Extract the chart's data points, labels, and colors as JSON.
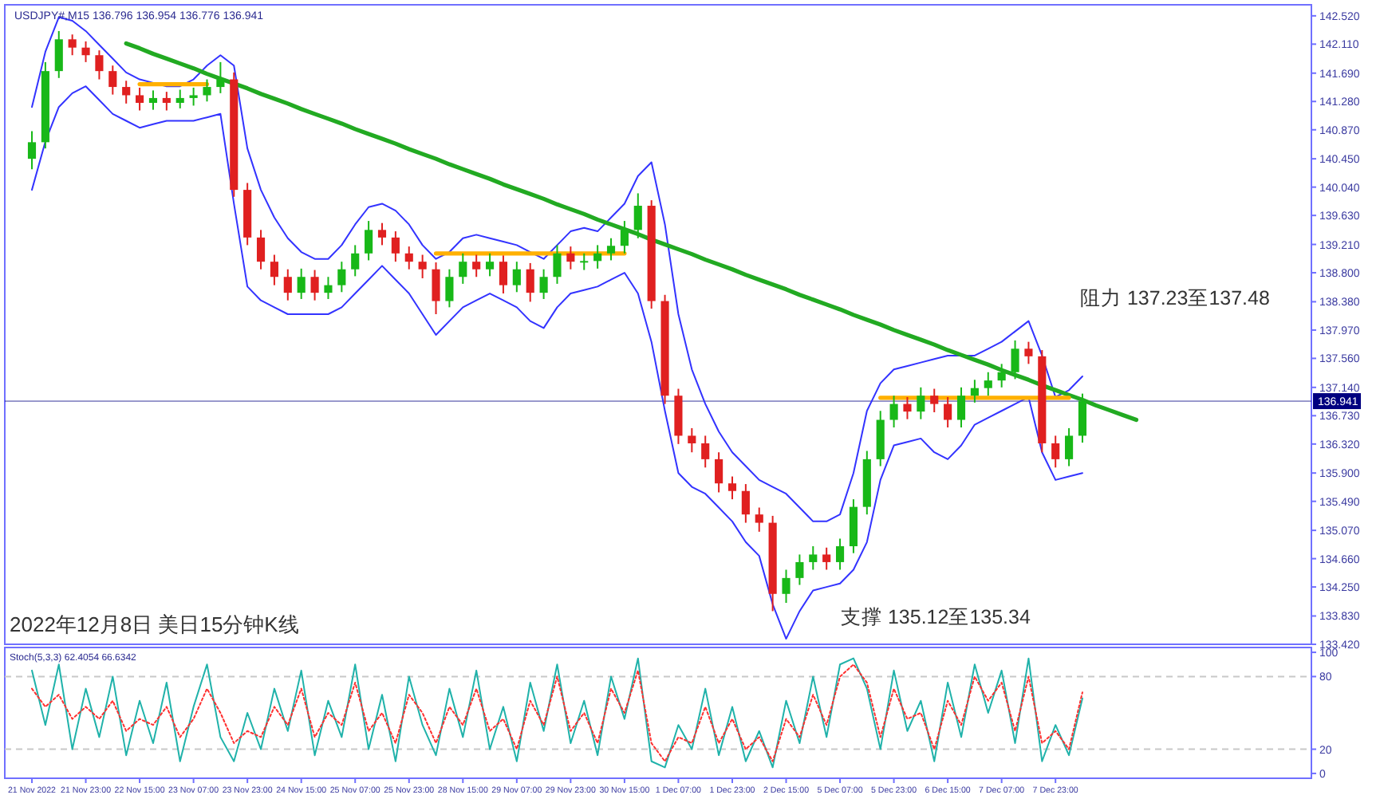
{
  "chart_data": [
    {
      "type": "candlestick",
      "subtitle": "USDJPY#,M15 136.796 136.954 136.776 136.941",
      "title": "2022年12月8日 美日15分钟K线",
      "categories": [
        null,
        null,
        null,
        null,
        null,
        null,
        null,
        null,
        null,
        null,
        null,
        null,
        null,
        null,
        null,
        null,
        null,
        null,
        null,
        null,
        null,
        null,
        null,
        null,
        null,
        null,
        null,
        null,
        null,
        null,
        null,
        null,
        null,
        null,
        null,
        null,
        null,
        null,
        null,
        null,
        null,
        null,
        null,
        null,
        null,
        null,
        null,
        null,
        null,
        null,
        null,
        null,
        null,
        null,
        null,
        null,
        null,
        null,
        null,
        null,
        null,
        null,
        null,
        null,
        null,
        null,
        null,
        null,
        null,
        null,
        null,
        null,
        null,
        null,
        null,
        null,
        null,
        null,
        null,
        null,
        null,
        null,
        null
      ],
      "ohlc": [
        [
          140.45,
          140.85,
          140.3,
          140.69
        ],
        [
          140.69,
          141.85,
          140.6,
          141.72
        ],
        [
          141.72,
          142.3,
          141.62,
          142.18
        ],
        [
          142.18,
          142.25,
          141.95,
          142.06
        ],
        [
          142.06,
          142.15,
          141.85,
          141.95
        ],
        [
          141.95,
          142.02,
          141.6,
          141.72
        ],
        [
          141.72,
          141.8,
          141.38,
          141.49
        ],
        [
          141.49,
          141.58,
          141.25,
          141.37
        ],
        [
          141.37,
          141.48,
          141.15,
          141.26
        ],
        [
          141.26,
          141.44,
          141.16,
          141.33
        ],
        [
          141.33,
          141.42,
          141.15,
          141.26
        ],
        [
          141.26,
          141.45,
          141.18,
          141.33
        ],
        [
          141.33,
          141.48,
          141.22,
          141.37
        ],
        [
          141.37,
          141.6,
          141.28,
          141.49
        ],
        [
          141.49,
          141.85,
          141.4,
          141.6
        ],
        [
          141.6,
          141.7,
          139.9,
          140.0
        ],
        [
          140.0,
          140.1,
          139.2,
          139.31
        ],
        [
          139.31,
          139.42,
          138.85,
          138.96
        ],
        [
          138.96,
          139.06,
          138.62,
          138.74
        ],
        [
          138.74,
          138.85,
          138.4,
          138.51
        ],
        [
          138.51,
          138.86,
          138.42,
          138.74
        ],
        [
          138.74,
          138.84,
          138.4,
          138.51
        ],
        [
          138.51,
          138.74,
          138.42,
          138.62
        ],
        [
          138.62,
          138.96,
          138.52,
          138.85
        ],
        [
          138.85,
          139.2,
          138.75,
          139.08
        ],
        [
          139.08,
          139.55,
          138.98,
          139.42
        ],
        [
          139.42,
          139.52,
          139.2,
          139.31
        ],
        [
          139.31,
          139.4,
          138.96,
          139.08
        ],
        [
          139.08,
          139.18,
          138.85,
          138.96
        ],
        [
          138.96,
          139.06,
          138.72,
          138.85
        ],
        [
          138.85,
          138.95,
          138.2,
          138.39
        ],
        [
          138.39,
          138.85,
          138.3,
          138.74
        ],
        [
          138.74,
          139.08,
          138.64,
          138.96
        ],
        [
          138.96,
          139.06,
          138.74,
          138.85
        ],
        [
          138.85,
          139.08,
          138.75,
          138.96
        ],
        [
          138.96,
          139.05,
          138.5,
          138.62
        ],
        [
          138.62,
          138.96,
          138.52,
          138.85
        ],
        [
          138.85,
          138.94,
          138.38,
          138.51
        ],
        [
          138.51,
          138.85,
          138.42,
          138.74
        ],
        [
          138.74,
          139.2,
          138.64,
          139.08
        ],
        [
          139.08,
          139.18,
          138.85,
          138.96
        ],
        [
          138.96,
          139.08,
          138.84,
          138.97
        ],
        [
          138.97,
          139.2,
          138.86,
          139.08
        ],
        [
          139.08,
          139.3,
          138.98,
          139.19
        ],
        [
          139.19,
          139.55,
          139.08,
          139.42
        ],
        [
          139.42,
          139.95,
          139.3,
          139.77
        ],
        [
          139.77,
          139.85,
          138.28,
          138.39
        ],
        [
          138.39,
          138.48,
          136.9,
          137.02
        ],
        [
          137.02,
          137.12,
          136.32,
          136.44
        ],
        [
          136.44,
          136.55,
          136.2,
          136.33
        ],
        [
          136.33,
          136.44,
          135.98,
          136.1
        ],
        [
          136.1,
          136.2,
          135.62,
          135.75
        ],
        [
          135.75,
          135.85,
          135.52,
          135.64
        ],
        [
          135.64,
          135.74,
          135.18,
          135.3
        ],
        [
          135.3,
          135.4,
          135.05,
          135.18
        ],
        [
          135.18,
          135.28,
          133.9,
          134.15
        ],
        [
          134.15,
          134.5,
          134.02,
          134.38
        ],
        [
          134.38,
          134.72,
          134.28,
          134.61
        ],
        [
          134.61,
          134.84,
          134.5,
          134.72
        ],
        [
          134.72,
          134.82,
          134.5,
          134.61
        ],
        [
          134.61,
          134.95,
          134.5,
          134.84
        ],
        [
          134.84,
          135.52,
          134.74,
          135.41
        ],
        [
          135.41,
          136.22,
          135.3,
          136.1
        ],
        [
          136.1,
          136.8,
          136.0,
          136.67
        ],
        [
          136.67,
          137.02,
          136.56,
          136.9
        ],
        [
          136.9,
          137.0,
          136.68,
          136.79
        ],
        [
          136.79,
          137.14,
          136.68,
          137.02
        ],
        [
          137.02,
          137.12,
          136.78,
          136.9
        ],
        [
          136.9,
          137.0,
          136.56,
          136.67
        ],
        [
          136.67,
          137.14,
          136.56,
          137.02
        ],
        [
          137.02,
          137.25,
          136.92,
          137.13
        ],
        [
          137.13,
          137.36,
          137.02,
          137.24
        ],
        [
          137.24,
          137.48,
          137.14,
          137.36
        ],
        [
          137.36,
          137.82,
          137.26,
          137.7
        ],
        [
          137.7,
          137.8,
          137.48,
          137.59
        ],
        [
          137.59,
          137.68,
          136.2,
          136.33
        ],
        [
          136.33,
          136.44,
          135.98,
          136.1
        ],
        [
          136.1,
          136.55,
          136.0,
          136.44
        ],
        [
          136.44,
          137.05,
          136.34,
          136.94
        ],
        null,
        null,
        null,
        null
      ],
      "series": [
        {
          "type": "line",
          "color": "#3333ff",
          "values": [
            141.2,
            142.0,
            142.5,
            142.45,
            142.3,
            142.1,
            141.9,
            141.7,
            141.6,
            141.55,
            141.5,
            141.5,
            141.6,
            141.8,
            141.95,
            141.8,
            140.6,
            140.0,
            139.6,
            139.3,
            139.1,
            139.0,
            139.0,
            139.2,
            139.5,
            139.75,
            139.8,
            139.7,
            139.5,
            139.2,
            139.0,
            139.1,
            139.3,
            139.35,
            139.3,
            139.25,
            139.2,
            139.1,
            139.0,
            139.2,
            139.4,
            139.45,
            139.4,
            139.6,
            139.8,
            140.2,
            140.4,
            139.5,
            138.2,
            137.4,
            136.9,
            136.5,
            136.2,
            136.0,
            135.8,
            135.7,
            135.6,
            135.4,
            135.2,
            135.2,
            135.3,
            135.9,
            136.8,
            137.2,
            137.4,
            137.45,
            137.5,
            137.55,
            137.6,
            137.6,
            137.6,
            137.7,
            137.8,
            137.95,
            138.1,
            137.6,
            137.0,
            137.1,
            137.3,
            null,
            null,
            null,
            null
          ]
        },
        {
          "type": "line",
          "color": "#3333ff",
          "values": [
            140.0,
            140.7,
            141.2,
            141.4,
            141.5,
            141.3,
            141.1,
            141.0,
            140.9,
            140.95,
            141.0,
            141.0,
            141.0,
            141.05,
            141.1,
            139.8,
            138.6,
            138.4,
            138.3,
            138.2,
            138.2,
            138.2,
            138.2,
            138.3,
            138.5,
            138.7,
            138.9,
            138.7,
            138.5,
            138.2,
            137.9,
            138.1,
            138.3,
            138.4,
            138.5,
            138.4,
            138.3,
            138.1,
            138.0,
            138.3,
            138.5,
            138.55,
            138.6,
            138.7,
            138.8,
            138.5,
            137.8,
            136.8,
            135.9,
            135.7,
            135.6,
            135.4,
            135.2,
            134.9,
            134.7,
            134.0,
            133.5,
            133.9,
            134.2,
            134.25,
            134.3,
            134.5,
            134.9,
            135.8,
            136.3,
            136.35,
            136.4,
            136.2,
            136.1,
            136.3,
            136.6,
            136.7,
            136.8,
            136.9,
            137.0,
            136.2,
            135.8,
            135.85,
            135.9,
            null,
            null,
            null,
            null
          ]
        },
        {
          "type": "line",
          "color": "#22aa22",
          "values": [
            null,
            null,
            null,
            null,
            null,
            null,
            null,
            142.12,
            142.05,
            141.97,
            141.9,
            141.83,
            141.76,
            141.68,
            141.61,
            141.54,
            141.47,
            141.39,
            141.32,
            141.25,
            141.17,
            141.1,
            141.03,
            140.96,
            140.88,
            140.81,
            140.74,
            140.67,
            140.59,
            140.52,
            140.45,
            140.37,
            140.3,
            140.23,
            140.16,
            140.08,
            140.01,
            139.94,
            139.87,
            139.79,
            139.72,
            139.65,
            139.57,
            139.5,
            139.43,
            139.36,
            139.28,
            139.21,
            139.14,
            139.07,
            138.99,
            138.92,
            138.85,
            138.77,
            138.7,
            138.63,
            138.56,
            138.48,
            138.41,
            138.34,
            138.27,
            138.19,
            138.12,
            138.05,
            137.97,
            137.9,
            137.83,
            137.76,
            137.68,
            137.61,
            137.54,
            137.47,
            137.39,
            137.32,
            137.25,
            137.17,
            137.1,
            137.03,
            136.96,
            136.88,
            136.81,
            136.74,
            136.67
          ]
        },
        {
          "type": "line",
          "color": "#ffb000",
          "values": [
            null,
            null,
            null,
            null,
            null,
            null,
            null,
            null,
            141.53,
            141.53,
            141.53,
            141.53,
            141.53,
            141.53,
            null,
            null,
            null,
            null,
            null,
            null,
            null,
            null,
            null,
            null,
            null,
            null,
            null,
            null,
            null,
            null,
            null,
            null,
            null,
            null,
            null,
            null,
            null,
            null,
            null,
            null,
            null,
            null,
            null,
            null,
            null,
            null,
            null,
            null,
            null,
            null,
            null,
            null,
            null,
            null,
            null,
            null,
            null,
            null,
            null,
            null,
            null,
            null,
            null,
            null,
            null,
            null,
            null,
            null,
            null,
            null,
            null,
            null,
            null,
            null,
            null,
            null,
            null,
            null,
            null,
            null,
            null,
            null,
            null
          ]
        },
        {
          "type": "line",
          "color": "#ffb000",
          "values": [
            null,
            null,
            null,
            null,
            null,
            null,
            null,
            null,
            null,
            null,
            null,
            null,
            null,
            null,
            null,
            null,
            null,
            null,
            null,
            null,
            null,
            null,
            null,
            null,
            null,
            null,
            null,
            null,
            null,
            null,
            139.08,
            139.08,
            139.08,
            139.08,
            139.08,
            139.08,
            139.08,
            139.08,
            139.08,
            139.08,
            139.08,
            139.08,
            139.08,
            139.08,
            139.08,
            null,
            null,
            null,
            null,
            null,
            null,
            null,
            null,
            null,
            null,
            null,
            null,
            null,
            null,
            null,
            null,
            null,
            null,
            null,
            null,
            null,
            null,
            null,
            null,
            null,
            null,
            null,
            null,
            null,
            null,
            null,
            null,
            null,
            null,
            null,
            null,
            null,
            null
          ]
        },
        {
          "type": "line",
          "color": "#ffb000",
          "values": [
            null,
            null,
            null,
            null,
            null,
            null,
            null,
            null,
            null,
            null,
            null,
            null,
            null,
            null,
            null,
            null,
            null,
            null,
            null,
            null,
            null,
            null,
            null,
            null,
            null,
            null,
            null,
            null,
            null,
            null,
            null,
            null,
            null,
            null,
            null,
            null,
            null,
            null,
            null,
            null,
            null,
            null,
            null,
            null,
            null,
            null,
            null,
            null,
            null,
            null,
            null,
            null,
            null,
            null,
            null,
            null,
            null,
            null,
            null,
            null,
            null,
            null,
            null,
            136.99,
            136.99,
            136.99,
            136.99,
            136.99,
            136.99,
            136.99,
            136.99,
            136.99,
            136.99,
            136.99,
            136.99,
            136.99,
            136.99,
            136.99,
            null,
            null,
            null,
            null,
            null
          ]
        }
      ],
      "ylim": [
        133.42,
        142.68
      ],
      "yticks": [
        {
          "value": 142.52,
          "label": "142.520"
        },
        {
          "value": 142.11,
          "label": "142.110"
        },
        {
          "value": 141.69,
          "label": "141.690"
        },
        {
          "value": 141.28,
          "label": "141.280"
        },
        {
          "value": 140.87,
          "label": "140.870"
        },
        {
          "value": 140.45,
          "label": "140.450"
        },
        {
          "value": 140.04,
          "label": "140.040"
        },
        {
          "value": 139.63,
          "label": "139.630"
        },
        {
          "value": 139.21,
          "label": "139.210"
        },
        {
          "value": 138.8,
          "label": "138.800"
        },
        {
          "value": 138.38,
          "label": "138.380"
        },
        {
          "value": 137.97,
          "label": "137.970"
        },
        {
          "value": 137.56,
          "label": "137.560"
        },
        {
          "value": 137.14,
          "label": "137.140"
        },
        {
          "value": 136.73,
          "label": "136.730"
        },
        {
          "value": 136.32,
          "label": "136.320"
        },
        {
          "value": 135.9,
          "label": "135.900"
        },
        {
          "value": 135.49,
          "label": "135.490"
        },
        {
          "value": 135.07,
          "label": "135.070"
        },
        {
          "value": 134.66,
          "label": "134.660"
        },
        {
          "value": 134.25,
          "label": "134.250"
        },
        {
          "value": 133.83,
          "label": "133.830"
        },
        {
          "value": 133.42,
          "label": "133.420"
        }
      ],
      "ref_lines": [
        {
          "axis": "y",
          "value": 136.941,
          "label": "136.941",
          "color": "#000080"
        }
      ],
      "annotations": [
        "阻力 137.23至137.48",
        "支撑 135.12至135.34"
      ]
    },
    {
      "type": "line",
      "title": "Stoch(5,3,3) 62.4054 66.6342",
      "categories": [
        "21 Nov 2022",
        null,
        null,
        null,
        "21 Nov 23:00",
        null,
        null,
        null,
        "22 Nov 15:00",
        null,
        null,
        null,
        "23 Nov 07:00",
        null,
        null,
        null,
        "23 Nov 23:00",
        null,
        null,
        null,
        "24 Nov 15:00",
        null,
        null,
        null,
        "25 Nov 07:00",
        null,
        null,
        null,
        "25 Nov 23:00",
        null,
        null,
        null,
        "28 Nov 15:00",
        null,
        null,
        null,
        "29 Nov 07:00",
        null,
        null,
        null,
        "29 Nov 23:00",
        null,
        null,
        null,
        "30 Nov 15:00",
        null,
        null,
        null,
        "1 Dec 07:00",
        null,
        null,
        null,
        "1 Dec 23:00",
        null,
        null,
        null,
        "2 Dec 15:00",
        null,
        null,
        null,
        "5 Dec 07:00",
        null,
        null,
        null,
        "5 Dec 23:00",
        null,
        null,
        null,
        "6 Dec 15:00",
        null,
        null,
        null,
        "7 Dec 07:00",
        null,
        null,
        null,
        "7 Dec 23:00",
        null,
        null,
        null,
        null,
        null,
        null
      ],
      "series": [
        {
          "color": "#20b2aa",
          "values": [
            85,
            40,
            90,
            20,
            70,
            30,
            80,
            15,
            60,
            25,
            75,
            10,
            55,
            90,
            30,
            10,
            50,
            20,
            70,
            35,
            85,
            15,
            60,
            30,
            90,
            20,
            65,
            10,
            80,
            40,
            15,
            70,
            30,
            85,
            20,
            55,
            10,
            75,
            35,
            90,
            25,
            60,
            15,
            80,
            45,
            95,
            10,
            5,
            40,
            20,
            70,
            15,
            55,
            10,
            35,
            5,
            60,
            25,
            80,
            30,
            90,
            95,
            70,
            20,
            85,
            35,
            60,
            10,
            75,
            30,
            90,
            50,
            85,
            25,
            95,
            10,
            40,
            15,
            62,
            null,
            null,
            null,
            null
          ]
        },
        {
          "color": "#ff3030",
          "line_style": "dotted",
          "values": [
            70,
            55,
            65,
            45,
            55,
            45,
            60,
            35,
            45,
            40,
            55,
            30,
            45,
            70,
            50,
            25,
            35,
            30,
            55,
            40,
            70,
            30,
            50,
            40,
            75,
            35,
            50,
            25,
            65,
            50,
            25,
            55,
            40,
            70,
            35,
            45,
            20,
            60,
            40,
            80,
            35,
            50,
            25,
            70,
            50,
            85,
            25,
            10,
            30,
            25,
            55,
            25,
            45,
            20,
            30,
            10,
            45,
            30,
            65,
            40,
            80,
            90,
            75,
            30,
            70,
            45,
            50,
            20,
            60,
            40,
            80,
            60,
            75,
            35,
            80,
            25,
            35,
            20,
            67,
            null,
            null,
            null,
            null
          ]
        }
      ],
      "ylim": [
        -4,
        104
      ],
      "yticks": [
        0,
        20,
        80,
        100
      ],
      "ref_lines": [
        {
          "axis": "y",
          "value": 20,
          "color": "#c8c8c8",
          "line_style": "dashed"
        },
        {
          "axis": "y",
          "value": 80,
          "color": "#c8c8c8",
          "line_style": "dashed"
        }
      ]
    }
  ]
}
